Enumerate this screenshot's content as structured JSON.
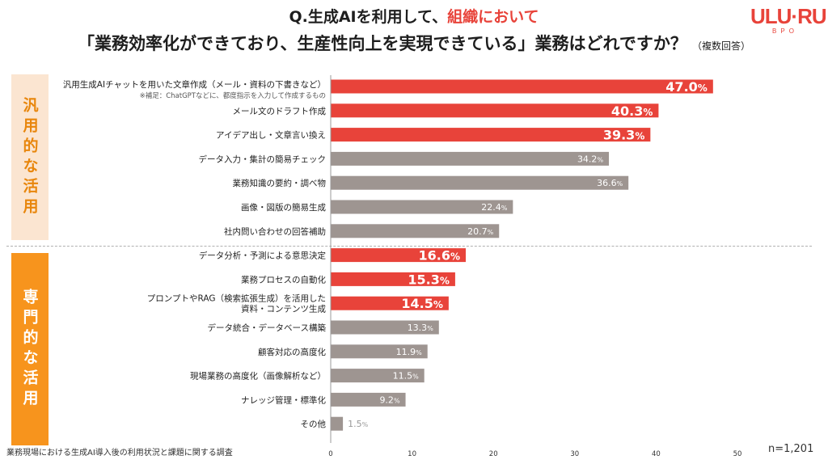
{
  "title": {
    "line1_prefix": "Q.生成AIを利用して、",
    "line1_highlight": "組織において",
    "line2": "「業務効率化ができており、生産性向上を実現できている」業務はどれですか？",
    "line2_note": "（複数回答）"
  },
  "logo": {
    "main": "ULU·RU",
    "sub": "BPO"
  },
  "groups": [
    {
      "label": "汎用的な活用"
    },
    {
      "label": "専門的な活用"
    }
  ],
  "footer": {
    "source": "業務現場における生成AI導入後の利用状況と課題に関する調査",
    "sample": "n=1,201"
  },
  "colors": {
    "highlight": "#e8433a",
    "normal": "#9e9591",
    "label_normal": "#ffffff",
    "label_light": "#999999"
  },
  "chart_data": {
    "type": "bar",
    "orientation": "horizontal",
    "categories": [
      "汎用生成AIチャットを用いた文章作成（メール・資料の下書きなど）",
      "メール文のドラフト作成",
      "アイデア出し・文章言い換え",
      "データ入力・集計の簡易チェック",
      "業務知識の要約・調べ物",
      "画像・図版の簡易生成",
      "社内問い合わせの回答補助",
      "データ分析・予測による意思決定",
      "業務プロセスの自動化",
      "プロンプトやRAG（検索拡張生成）を活用した資料・コンテンツ生成",
      "データ統合・データベース構築",
      "顧客対応の高度化",
      "現場業務の高度化（画像解析など）",
      "ナレッジ管理・標準化",
      "その他"
    ],
    "category_display": [
      [
        "汎用生成AIチャットを用いた文章作成（メール・資料の下書きなど）"
      ],
      [
        "メール文のドラフト作成"
      ],
      [
        "アイデア出し・文章言い換え"
      ],
      [
        "データ入力・集計の簡易チェック"
      ],
      [
        "業務知識の要約・調べ物"
      ],
      [
        "画像・図版の簡易生成"
      ],
      [
        "社内問い合わせの回答補助"
      ],
      [
        "データ分析・予測による意思決定"
      ],
      [
        "業務プロセスの自動化"
      ],
      [
        "プロンプトやRAG（検索拡張生成）を活用した",
        "資料・コンテンツ生成"
      ],
      [
        "データ統合・データベース構築"
      ],
      [
        "顧客対応の高度化"
      ],
      [
        "現場業務の高度化（画像解析など）"
      ],
      [
        "ナレッジ管理・標準化"
      ],
      [
        "その他"
      ]
    ],
    "category_note": "※補足：ChatGPTなどに、都度指示を入力して作成するもの",
    "values": [
      47.0,
      40.3,
      39.3,
      34.2,
      36.6,
      22.4,
      20.7,
      16.6,
      15.3,
      14.5,
      13.3,
      11.9,
      11.5,
      9.2,
      1.5
    ],
    "value_labels": [
      "47.0",
      "40.3",
      "39.3",
      "34.2",
      "36.6",
      "22.4",
      "20.7",
      "16.6",
      "15.3",
      "14.5",
      "13.3",
      "11.9",
      "11.5",
      "9.2",
      "1.5"
    ],
    "unit": "%",
    "highlighted": [
      true,
      true,
      true,
      false,
      false,
      false,
      false,
      true,
      true,
      true,
      false,
      false,
      false,
      false,
      false
    ],
    "xlim": [
      0,
      50
    ],
    "xticks": [
      0,
      10,
      20,
      30,
      40,
      50
    ],
    "xlabel": "",
    "ylabel": "",
    "grid": false
  }
}
